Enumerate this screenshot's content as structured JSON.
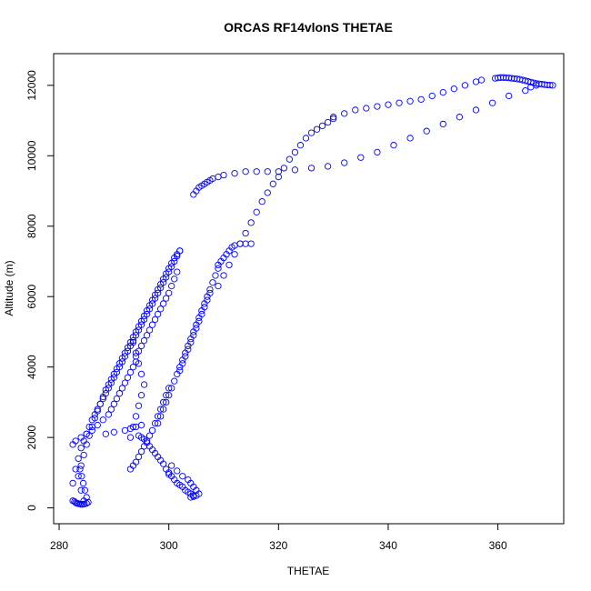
{
  "chart_data": {
    "type": "scatter",
    "title": "ORCAS RF14vlonS THETAE",
    "xlabel": "THETAE",
    "ylabel": "Altitude (m)",
    "xlim": [
      279,
      372
    ],
    "ylim": [
      -450,
      12900
    ],
    "x_ticks": [
      280,
      300,
      320,
      340,
      360
    ],
    "y_ticks": [
      0,
      2000,
      4000,
      6000,
      8000,
      10000,
      12000
    ],
    "x_tick_labels": [
      "280",
      "300",
      "320",
      "340",
      "360"
    ],
    "y_tick_labels": [
      "0",
      "2000",
      "4000",
      "6000",
      "8000",
      "10000",
      "12000"
    ],
    "grid": false,
    "legend": "none",
    "marker": "open-circle",
    "color": "#0000ff",
    "series": [
      {
        "x": [
          284.5,
          284.0,
          283.5,
          284.0,
          284.5,
          285.0,
          285.5,
          286.0,
          286.5,
          287.0,
          287.5,
          288.0,
          288.5,
          289.0,
          289.5,
          290.0,
          290.5,
          291.0,
          291.5,
          292.0,
          292.5,
          293.0,
          293.5,
          294.0,
          294.5,
          295.0,
          295.5,
          296.0,
          296.5,
          297.0,
          297.5,
          298.0,
          298.5,
          299.0,
          299.5,
          300.0,
          300.5,
          301.0,
          301.5,
          302.0
        ],
        "y": [
          200,
          500,
          900,
          1200,
          1500,
          1800,
          2050,
          2300,
          2550,
          2750,
          2950,
          3150,
          3350,
          3500,
          3650,
          3800,
          3950,
          4100,
          4250,
          4400,
          4550,
          4700,
          4850,
          5000,
          5150,
          5300,
          5450,
          5600,
          5750,
          5900,
          6050,
          6200,
          6350,
          6500,
          6650,
          6800,
          6950,
          7100,
          7200,
          7300
        ]
      },
      {
        "x": [
          302.0,
          301.5,
          301.0,
          300.5,
          300.0,
          299.5,
          299.0,
          298.5,
          298.0,
          297.5,
          297.0,
          296.5,
          296.0,
          295.5,
          295.0,
          294.5,
          294.0,
          293.5,
          293.0,
          292.5,
          292.0,
          291.5,
          291.0,
          290.5,
          290.0,
          289.5,
          289.0,
          288.5,
          288.0,
          287.5,
          287.0,
          286.5,
          286.0,
          285.5,
          285.0,
          284.5,
          284.0,
          283.5,
          283.0,
          282.5
        ],
        "y": [
          7300,
          7150,
          7000,
          6850,
          6700,
          6550,
          6400,
          6250,
          6100,
          5950,
          5800,
          5650,
          5500,
          5350,
          5200,
          5050,
          4900,
          4750,
          4600,
          4450,
          4300,
          4150,
          4000,
          3850,
          3700,
          3550,
          3400,
          3250,
          3100,
          2950,
          2800,
          2650,
          2500,
          2300,
          2100,
          1900,
          1700,
          1400,
          1100,
          700
        ]
      },
      {
        "x": [
          282.5,
          282.8,
          283.0,
          283.2,
          283.5,
          283.8,
          284.0,
          284.3,
          284.6,
          285.0,
          285.3,
          285.0,
          284.7,
          284.4,
          284.1,
          283.8
        ],
        "y": [
          200,
          180,
          150,
          130,
          120,
          110,
          100,
          100,
          110,
          130,
          160,
          300,
          500,
          700,
          900,
          1100
        ]
      },
      {
        "x": [
          282.5,
          283.0,
          284.0,
          285.0,
          286.0,
          287.0,
          288.0,
          289.0,
          289.5,
          290.0,
          290.5,
          291.0,
          291.5,
          292.0,
          292.5,
          293.0,
          293.5,
          294.0
        ],
        "y": [
          1800,
          1900,
          2000,
          2100,
          2200,
          2350,
          2500,
          2650,
          2800,
          2950,
          3100,
          3250,
          3400,
          3550,
          3700,
          3850,
          4000,
          4150
        ]
      },
      {
        "x": [
          294.0,
          294.5,
          295.0,
          295.5,
          296.0,
          296.5,
          297.0,
          297.5,
          298.0,
          298.5,
          299.0,
          299.5,
          300.0,
          300.5,
          301.0,
          301.5
        ],
        "y": [
          4300,
          4450,
          4600,
          4750,
          4900,
          5050,
          5200,
          5350,
          5500,
          5650,
          5800,
          5950,
          6100,
          6300,
          6500,
          6700
        ]
      },
      {
        "x": [
          293.5,
          294.0,
          294.5,
          295.0,
          295.5,
          295.0,
          294.5,
          294.0,
          293.5,
          293.0
        ],
        "y": [
          4700,
          4400,
          4100,
          3800,
          3500,
          3200,
          2900,
          2600,
          2300,
          2000
        ]
      },
      {
        "x": [
          293.0,
          293.5,
          294.0,
          294.5,
          295.0,
          295.5,
          296.0,
          296.5,
          297.0,
          297.5,
          298.0,
          298.5,
          299.0,
          299.5,
          300.0
        ],
        "y": [
          1100,
          1200,
          1300,
          1450,
          1600,
          1750,
          1900,
          2050,
          2200,
          2400,
          2600,
          2800,
          3000,
          3200,
          3400
        ]
      },
      {
        "x": [
          300.0,
          300.5,
          301.0,
          301.5,
          302.0,
          302.5,
          303.0,
          303.5,
          304.0,
          304.5
        ],
        "y": [
          1000,
          900,
          800,
          700,
          650,
          600,
          500,
          450,
          400,
          350
        ]
      },
      {
        "x": [
          300.5,
          301.5,
          302.5,
          303.5,
          304.0,
          304.5,
          305.0,
          305.5,
          305.0,
          304.5,
          304.0
        ],
        "y": [
          1200,
          1050,
          900,
          800,
          700,
          600,
          500,
          400,
          350,
          320,
          300
        ]
      },
      {
        "x": [
          298.0,
          298.5,
          299.0,
          299.5,
          300.0,
          300.5,
          301.0,
          301.5,
          302.0,
          302.5,
          303.0,
          303.5,
          304.0,
          304.5,
          305.0,
          305.5,
          306.0,
          306.5,
          307.0,
          307.5,
          308.0,
          308.5,
          309.0
        ],
        "y": [
          2400,
          2600,
          2800,
          3000,
          3200,
          3400,
          3600,
          3800,
          4000,
          4200,
          4400,
          4600,
          4800,
          5000,
          5200,
          5400,
          5600,
          5800,
          6000,
          6200,
          6400,
          6600,
          6800
        ]
      },
      {
        "x": [
          309.0,
          309.5,
          310.0,
          310.5,
          311.0,
          311.5,
          312.0,
          313.0,
          314.0,
          315.0
        ],
        "y": [
          6900,
          7000,
          7100,
          7200,
          7300,
          7400,
          7450,
          7500,
          7500,
          7500
        ]
      },
      {
        "x": [
          302.0,
          302.5,
          303.0,
          303.5,
          304.0,
          304.5,
          305.0,
          305.5,
          306.0,
          306.5,
          307.0,
          307.5
        ],
        "y": [
          3900,
          4100,
          4300,
          4500,
          4700,
          4900,
          5100,
          5300,
          5500,
          5700,
          5900,
          6100
        ]
      },
      {
        "x": [
          309.0,
          310.0,
          311.0,
          312.0,
          313.0,
          314.0,
          315.0,
          316.0,
          317.0,
          318.0,
          319.0,
          320.0,
          321.0,
          322.0,
          323.0,
          324.0,
          325.0,
          326.0,
          327.0,
          328.0,
          329.0,
          330.0
        ],
        "y": [
          6300,
          6600,
          6900,
          7200,
          7500,
          7800,
          8100,
          8400,
          8700,
          8950,
          9200,
          9400,
          9650,
          9900,
          10100,
          10300,
          10500,
          10650,
          10750,
          10850,
          10950,
          11050
        ]
      },
      {
        "x": [
          330.0,
          332.0,
          334.0,
          336.0,
          338.0,
          340.0,
          342.0,
          344.0,
          346.0,
          348.0,
          350.0,
          352.0,
          354.0,
          356.0,
          357.0
        ],
        "y": [
          11100,
          11200,
          11300,
          11350,
          11400,
          11450,
          11500,
          11550,
          11600,
          11700,
          11800,
          11900,
          12000,
          12100,
          12150
        ]
      },
      {
        "x": [
          359.5,
          360.0,
          360.5,
          361.0,
          361.5,
          362.0,
          362.5,
          363.0,
          363.5,
          364.0,
          364.5,
          365.0,
          365.5,
          366.0,
          366.5,
          367.0,
          367.5,
          368.0,
          368.5,
          369.0,
          369.5,
          370.0
        ],
        "y": [
          12200,
          12210,
          12220,
          12220,
          12215,
          12210,
          12200,
          12190,
          12180,
          12170,
          12150,
          12130,
          12110,
          12090,
          12070,
          12050,
          12040,
          12030,
          12020,
          12010,
          12005,
          12000
        ]
      },
      {
        "x": [
          304.5,
          305.0,
          305.5,
          306.0,
          306.5,
          307.0,
          307.5,
          308.0,
          309.0,
          310.0,
          312.0,
          314.0,
          316.0,
          318.0,
          320.0,
          323.0,
          326.0,
          329.0,
          332.0,
          335.0,
          338.0,
          341.0,
          344.0,
          347.0,
          350.0,
          353.0,
          356.0,
          359.0,
          362.0,
          365.0,
          366.0,
          367.0
        ],
        "y": [
          8900,
          9000,
          9100,
          9150,
          9200,
          9250,
          9300,
          9350,
          9400,
          9450,
          9500,
          9550,
          9550,
          9550,
          9550,
          9600,
          9650,
          9700,
          9800,
          9950,
          10100,
          10300,
          10500,
          10700,
          10900,
          11100,
          11300,
          11500,
          11700,
          11850,
          11950,
          12000
        ]
      },
      {
        "x": [
          294.5,
          295.0,
          295.5,
          296.0,
          296.5,
          297.0,
          297.5,
          298.0,
          298.5,
          299.0,
          299.5,
          300.0
        ],
        "y": [
          2050,
          2000,
          1950,
          1850,
          1750,
          1650,
          1550,
          1450,
          1350,
          1250,
          1100,
          950
        ]
      },
      {
        "x": [
          288.5,
          290.0,
          292.0,
          293.0,
          294.0,
          295.0
        ],
        "y": [
          2100,
          2150,
          2200,
          2250,
          2300,
          2350
        ]
      }
    ]
  }
}
